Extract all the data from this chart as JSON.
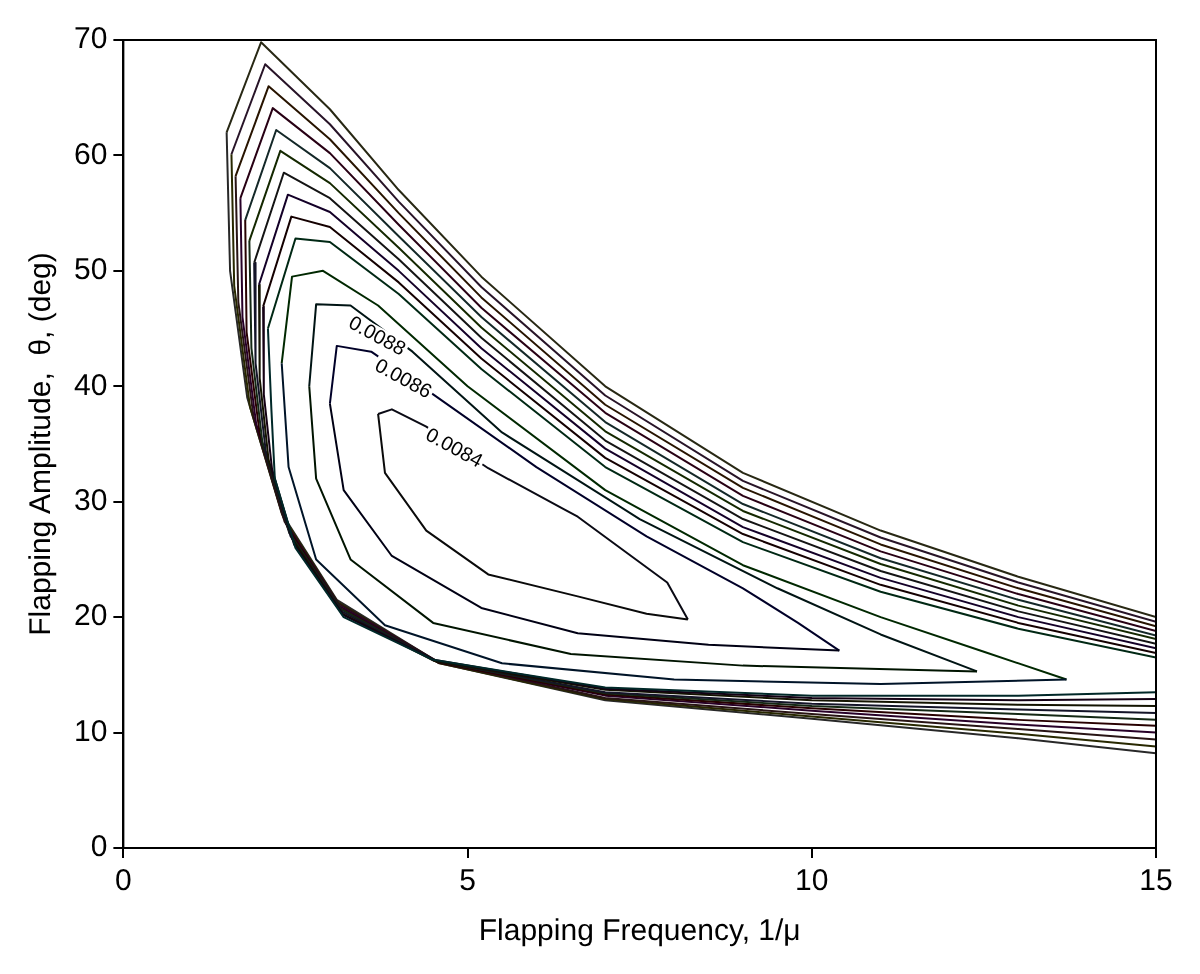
{
  "chart_data": {
    "type": "line",
    "xlabel": "Flapping Frequency, 1/μ",
    "ylabel": "Flapping Amplitude,  θ, (deg)",
    "xlim": [
      0,
      15
    ],
    "xticks": [
      0,
      5,
      10,
      15
    ],
    "ylim": [
      0,
      70
    ],
    "yticks": [
      0,
      10,
      20,
      30,
      40,
      50,
      60,
      70
    ],
    "grid": false,
    "legend": false,
    "marker": "none",
    "line_style": "solid",
    "annotations": [
      {
        "text": "0.0088",
        "x": 3.68,
        "y": 44.3
      },
      {
        "text": "0.0086",
        "x": 4.06,
        "y": 40.6
      },
      {
        "text": "0.0084",
        "x": 4.8,
        "y": 34.6
      }
    ],
    "series": [
      {
        "color": "#0a0a0a",
        "x": [
          3.7,
          3.8,
          4.4,
          5.3,
          6.6,
          7.6,
          8.2
        ],
        "values": [
          37.6,
          32.5,
          27.5,
          23.7,
          21.8,
          20.3,
          19.8
        ]
      },
      {
        "color": "#0a0a14",
        "x": [
          3.7,
          3.9,
          4.4,
          5.3,
          6.6,
          7.9,
          8.2
        ],
        "values": [
          37.6,
          38,
          36.5,
          32.9,
          28.7,
          23,
          19.8
        ]
      },
      {
        "color": "#000014",
        "x": [
          3.0,
          3.2,
          3.9,
          5.2,
          6.6,
          8.5,
          10.4
        ],
        "values": [
          38.5,
          31,
          25.3,
          20.8,
          18.6,
          17.6,
          17.1
        ]
      },
      {
        "color": "#000028",
        "x": [
          3.0,
          3.1,
          3.6,
          4.5,
          6.0,
          7.6,
          9.0,
          9.8,
          10.4
        ],
        "values": [
          38.5,
          43.5,
          43,
          39.3,
          33,
          27,
          22.5,
          19.5,
          17.1
        ]
      },
      {
        "color": "#001400",
        "x": [
          2.7,
          2.8,
          3.3,
          4.5,
          6.5,
          9,
          12.4
        ],
        "values": [
          40,
          32,
          25,
          19.5,
          16.8,
          15.8,
          15.3
        ]
      },
      {
        "color": "#001414",
        "x": [
          2.7,
          2.8,
          3.3,
          4.2,
          5.5,
          7.5,
          9.5,
          11,
          12.4
        ],
        "values": [
          40,
          47.1,
          47,
          43,
          36,
          28.5,
          22.5,
          18.5,
          15.3
        ]
      },
      {
        "color": "#001428",
        "x": [
          2.3,
          2.4,
          2.8,
          3.8,
          5.5,
          8,
          11,
          13.7
        ],
        "values": [
          42,
          33,
          25,
          19.3,
          16,
          14.6,
          14.2,
          14.6
        ]
      },
      {
        "color": "#002800",
        "x": [
          2.3,
          2.45,
          2.9,
          3.7,
          5,
          7,
          9,
          11,
          12.5,
          13.7
        ],
        "values": [
          42,
          49.5,
          50,
          47,
          40,
          31,
          24.5,
          20,
          17,
          14.6
        ]
      },
      {
        "color": "#002814",
        "x": [
          2.1,
          2.5,
          3,
          4,
          5.2,
          7,
          9,
          11,
          13,
          15
        ],
        "values": [
          45,
          52.8,
          52.5,
          48,
          41.5,
          33,
          26.5,
          22.2,
          19,
          16.5
        ]
      },
      {
        "color": "#002828",
        "x": [
          2.1,
          2.15,
          2.2,
          2.5,
          3.2,
          4.5,
          7,
          10,
          13,
          15
        ],
        "values": [
          45,
          38,
          32,
          26,
          20,
          16.3,
          13.9,
          13.2,
          13.2,
          13.5
        ]
      },
      {
        "color": "#140000",
        "x": [
          2.03,
          2.44,
          3,
          4,
          5.2,
          7,
          9,
          11,
          13,
          15
        ],
        "values": [
          46.9,
          54.7,
          53.8,
          49,
          42.4,
          33.8,
          27.2,
          22.8,
          19.5,
          16.9
        ]
      },
      {
        "color": "#140014",
        "x": [
          2.03,
          2.04,
          2.16,
          2.48,
          3.19,
          4.51,
          7,
          10,
          13,
          15
        ],
        "values": [
          46.9,
          39.3,
          32.8,
          26.3,
          20.2,
          16.3,
          13.8,
          13,
          12.8,
          12.9
        ]
      },
      {
        "color": "#140028",
        "x": [
          1.97,
          2.39,
          3,
          4,
          5.2,
          7,
          9,
          11,
          13,
          15
        ],
        "values": [
          48.8,
          56.6,
          55.1,
          50,
          43.3,
          34.6,
          27.8,
          23.4,
          20,
          17.3
        ]
      },
      {
        "color": "#141400",
        "x": [
          1.97,
          1.98,
          2.11,
          2.46,
          3.18,
          4.52,
          7,
          10,
          13,
          15
        ],
        "values": [
          48.8,
          40.7,
          33.6,
          26.7,
          20.3,
          16.2,
          13.7,
          12.8,
          12.4,
          12.3
        ]
      },
      {
        "color": "#141414",
        "x": [
          1.9,
          2.33,
          3,
          4,
          5.2,
          7,
          9,
          11,
          13,
          15
        ],
        "values": [
          50.7,
          58.5,
          56.3,
          51,
          44.2,
          35.3,
          28.5,
          24,
          20.5,
          17.7
        ]
      },
      {
        "color": "#141428",
        "x": [
          1.9,
          1.92,
          2.07,
          2.43,
          3.17,
          4.53,
          7,
          10,
          13,
          15
        ],
        "values": [
          50.7,
          42,
          34.3,
          27,
          20.5,
          16.2,
          13.5,
          12.5,
          12,
          11.7
        ]
      },
      {
        "color": "#142800",
        "x": [
          1.83,
          2.28,
          3,
          4,
          5.2,
          7,
          9,
          11,
          13,
          15
        ],
        "values": [
          52.6,
          60.4,
          57.6,
          52,
          45.1,
          36.1,
          29.2,
          24.6,
          21,
          18.1
        ]
      },
      {
        "color": "#142814",
        "x": [
          1.83,
          1.86,
          2.02,
          2.41,
          3.16,
          4.54,
          7,
          10,
          13,
          15
        ],
        "values": [
          52.6,
          43.3,
          35.1,
          27.3,
          20.7,
          16.2,
          13.4,
          12.3,
          11.6,
          11.1
        ]
      },
      {
        "color": "#142828",
        "x": [
          1.77,
          2.22,
          3,
          4,
          5.2,
          7,
          9,
          11,
          13,
          15
        ],
        "values": [
          54.4,
          62.2,
          58.9,
          53,
          46,
          36.9,
          29.8,
          25.1,
          21.5,
          18.4
        ]
      },
      {
        "color": "#280000",
        "x": [
          1.77,
          1.79,
          1.98,
          2.39,
          3.14,
          4.56,
          7,
          10,
          13,
          15
        ],
        "values": [
          54.4,
          44.7,
          35.9,
          27.7,
          20.8,
          16.1,
          13.3,
          12.1,
          11.1,
          10.6
        ]
      },
      {
        "color": "#280014",
        "x": [
          1.7,
          2.17,
          3,
          4,
          5.2,
          7,
          9,
          11,
          13,
          15
        ],
        "values": [
          56.3,
          64.1,
          60.2,
          54,
          46.8,
          37.7,
          30.5,
          25.7,
          22,
          18.8
        ]
      },
      {
        "color": "#280028",
        "x": [
          1.7,
          1.73,
          1.93,
          2.37,
          3.13,
          4.57,
          7,
          10,
          13,
          15
        ],
        "values": [
          56.3,
          46,
          36.7,
          28,
          21,
          16.1,
          13.2,
          11.9,
          10.7,
          10
        ]
      },
      {
        "color": "#281400",
        "x": [
          1.63,
          2.11,
          3,
          4,
          5.2,
          7,
          9,
          11,
          13,
          15
        ],
        "values": [
          58.2,
          66,
          61.4,
          55,
          47.7,
          38.4,
          31.2,
          26.3,
          22.5,
          19.2
        ]
      },
      {
        "color": "#281414",
        "x": [
          1.63,
          1.67,
          1.89,
          2.34,
          3.12,
          4.58,
          7,
          10,
          13,
          15
        ],
        "values": [
          58.2,
          47.3,
          37.4,
          28.3,
          21.2,
          16.1,
          13,
          11.6,
          10.3,
          9.4
        ]
      },
      {
        "color": "#281428",
        "x": [
          1.57,
          2.06,
          3,
          4,
          5.2,
          7,
          9,
          11,
          13,
          15
        ],
        "values": [
          60.1,
          67.9,
          62.7,
          56,
          48.6,
          39.2,
          31.8,
          26.9,
          23,
          19.6
        ]
      },
      {
        "color": "#282800",
        "x": [
          1.57,
          1.61,
          1.84,
          2.32,
          3.11,
          4.59,
          7,
          10,
          13,
          15
        ],
        "values": [
          60.1,
          48.7,
          38.2,
          28.7,
          21.3,
          16,
          12.9,
          11.4,
          9.9,
          8.8
        ]
      },
      {
        "color": "#282814",
        "x": [
          1.5,
          2,
          3,
          4,
          5.2,
          7,
          9,
          11,
          13,
          15
        ],
        "values": [
          62,
          69.8,
          64,
          57,
          49.5,
          40,
          32.5,
          27.5,
          23.5,
          20
        ]
      },
      {
        "color": "#282828",
        "x": [
          1.5,
          1.55,
          1.8,
          2.3,
          3.1,
          4.6,
          7,
          10,
          13,
          15
        ],
        "values": [
          62,
          50,
          39,
          29,
          21.5,
          16,
          12.8,
          11.2,
          9.5,
          8.2
        ]
      }
    ]
  }
}
